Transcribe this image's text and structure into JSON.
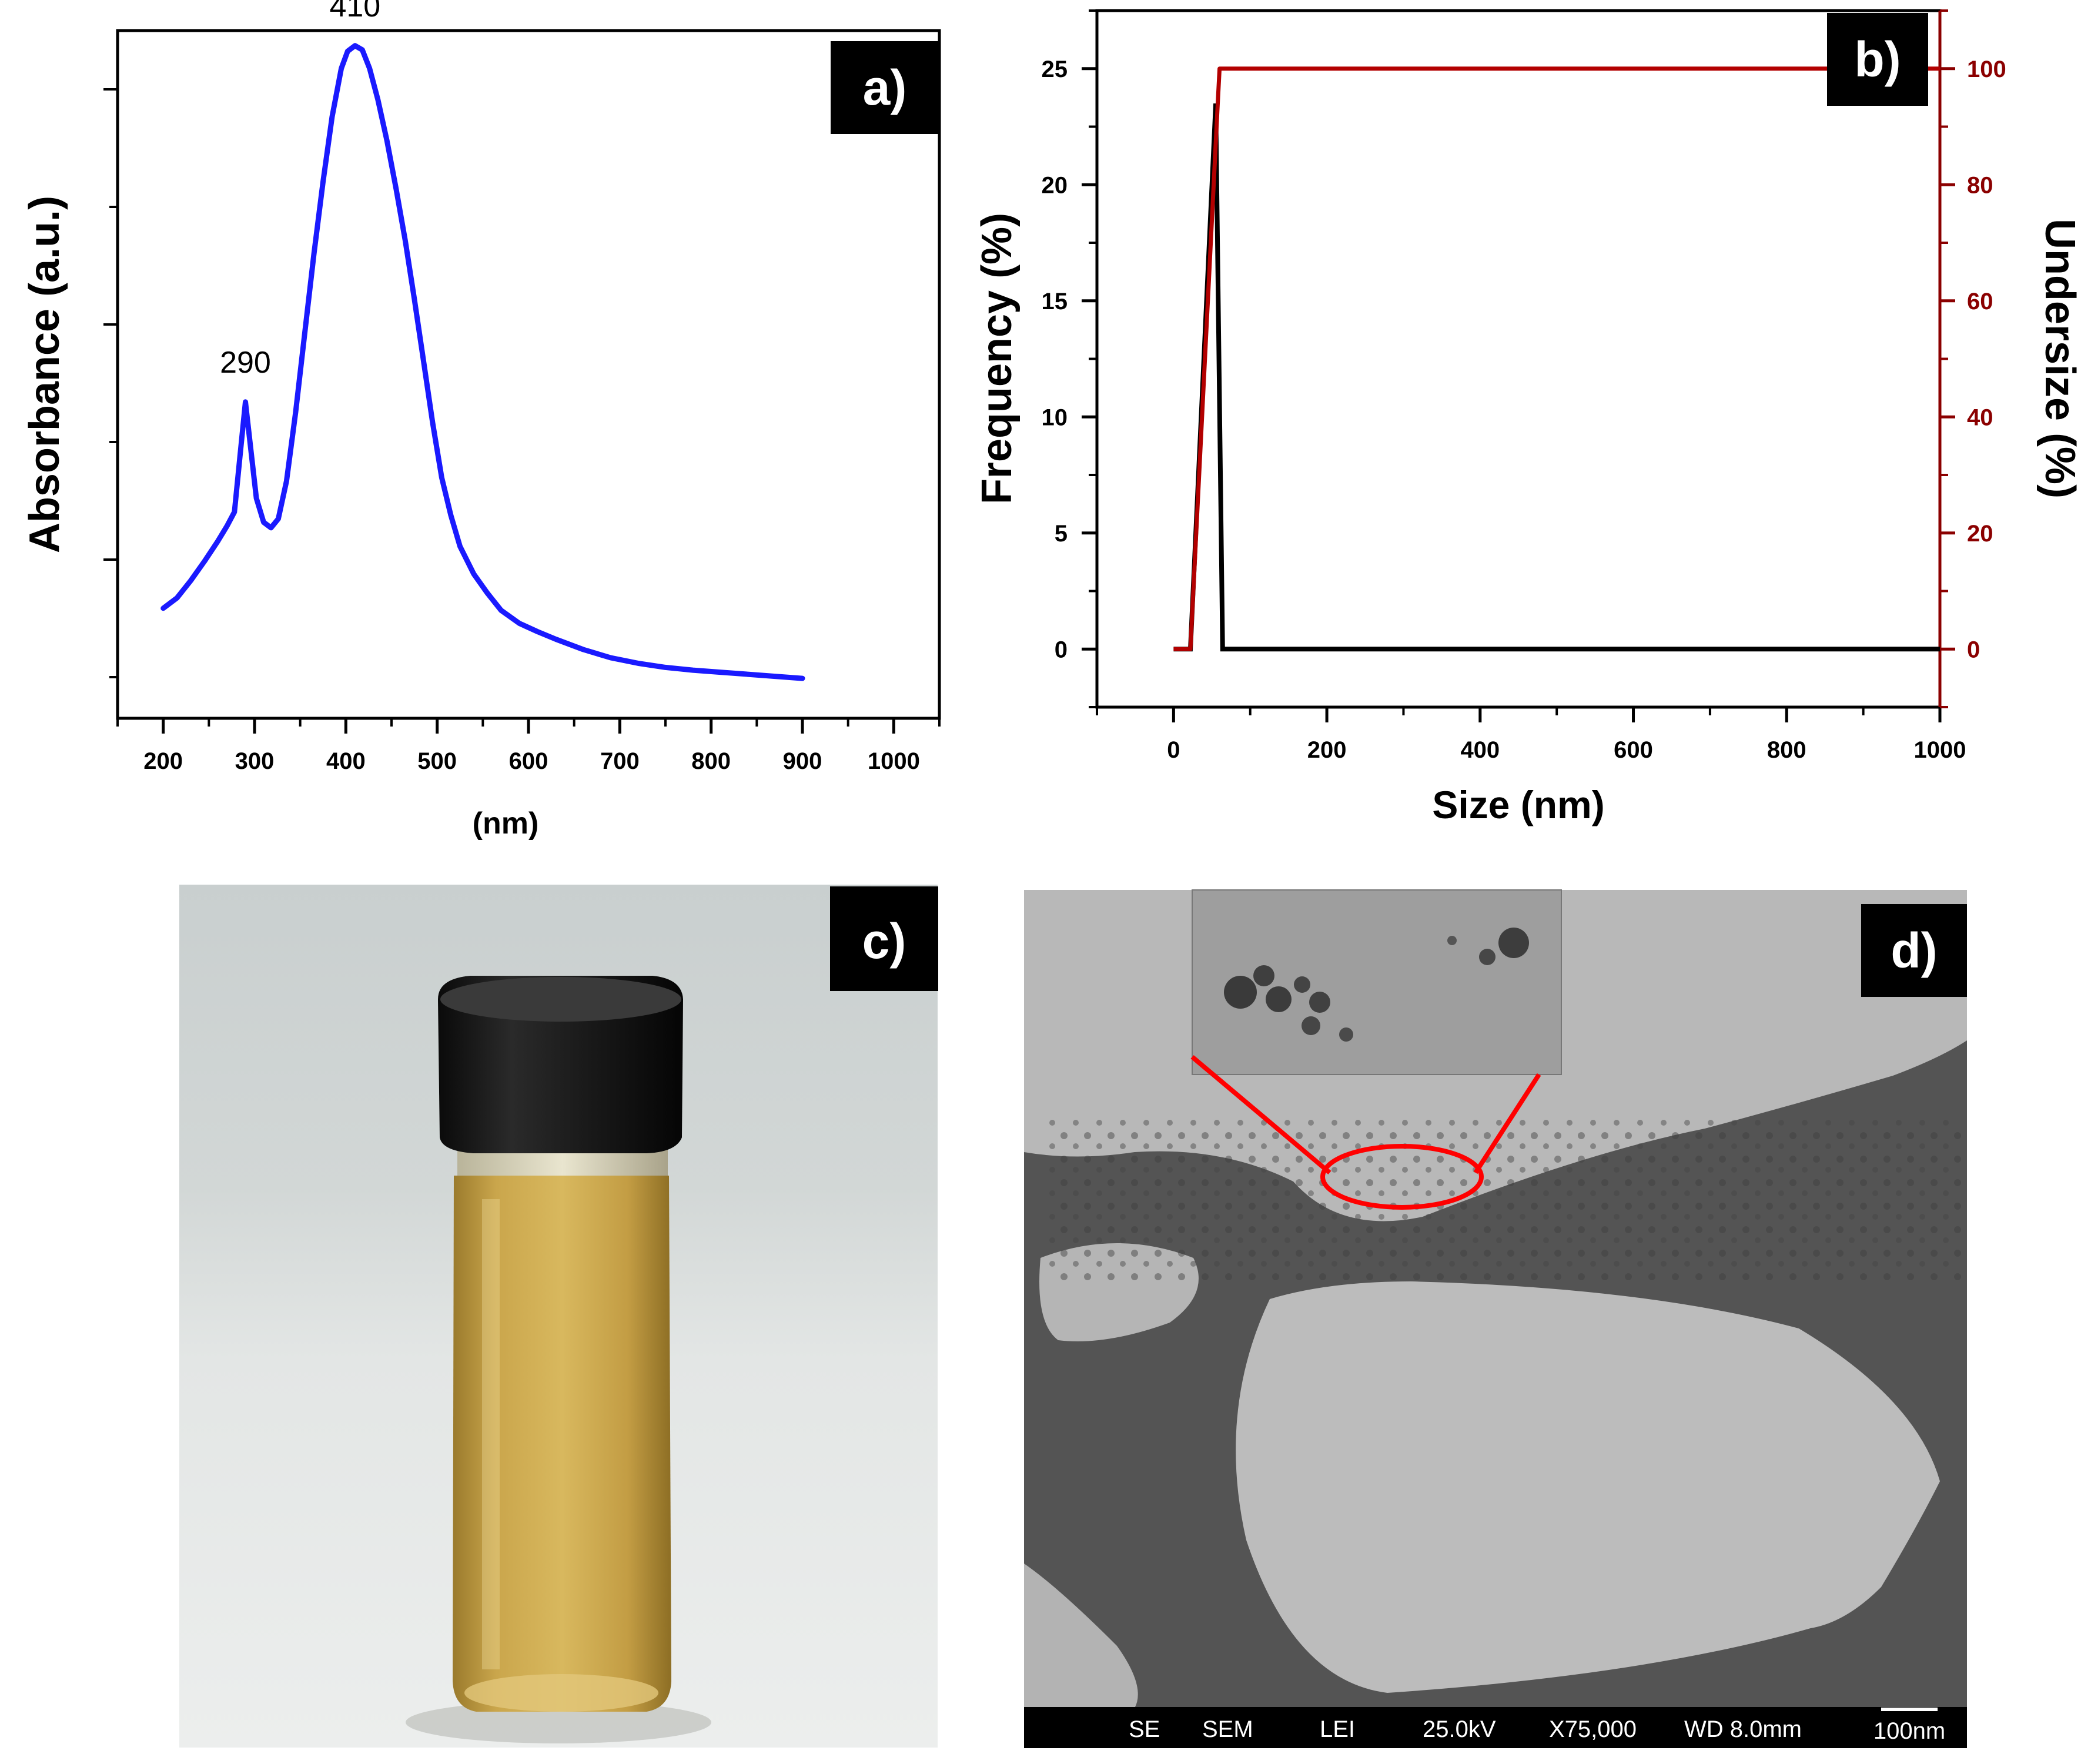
{
  "panels": {
    "a": {
      "tag": "a)"
    },
    "b": {
      "tag": "b)"
    },
    "c": {
      "tag": "c)"
    },
    "d": {
      "tag": "d)"
    }
  },
  "sem_info": {
    "fields": [
      "SE",
      "SEM",
      "LEI",
      "25.0kV",
      "X75,000",
      "WD 8.0mm"
    ],
    "scale_label": "100nm"
  },
  "chart_data": [
    {
      "panel": "a)",
      "type": "line",
      "xlabel": "(nm)",
      "ylabel": "Absorbance (a.u.)",
      "xlim": [
        150,
        1050
      ],
      "ylim": [
        0,
        1.0
      ],
      "x_ticks": [
        200,
        300,
        400,
        500,
        600,
        700,
        800,
        900,
        1000
      ],
      "y_tick_labels_shown": false,
      "annotations": [
        {
          "text": "290",
          "x": 290
        },
        {
          "text": "410",
          "x": 410
        }
      ],
      "series": [
        {
          "color": "#1a1aff",
          "x": [
            200,
            215,
            230,
            245,
            260,
            270,
            278,
            284,
            290,
            296,
            302,
            310,
            318,
            326,
            335,
            345,
            355,
            365,
            375,
            385,
            395,
            402,
            410,
            418,
            426,
            435,
            445,
            455,
            465,
            475,
            485,
            495,
            505,
            515,
            525,
            540,
            555,
            570,
            590,
            610,
            630,
            660,
            690,
            720,
            750,
            780,
            810,
            840,
            870,
            900
          ],
          "y": [
            0.16,
            0.175,
            0.2,
            0.228,
            0.258,
            0.28,
            0.3,
            0.38,
            0.46,
            0.39,
            0.32,
            0.285,
            0.277,
            0.29,
            0.345,
            0.445,
            0.56,
            0.675,
            0.78,
            0.875,
            0.945,
            0.97,
            0.978,
            0.972,
            0.945,
            0.9,
            0.84,
            0.77,
            0.695,
            0.61,
            0.52,
            0.43,
            0.35,
            0.295,
            0.25,
            0.21,
            0.182,
            0.157,
            0.138,
            0.126,
            0.115,
            0.1,
            0.088,
            0.08,
            0.074,
            0.07,
            0.067,
            0.064,
            0.061,
            0.058
          ]
        }
      ]
    },
    {
      "panel": "b)",
      "type": "line",
      "xlabel": "Size (nm)",
      "ylabel": "Frequency (%)",
      "y2label": "Undersize (%)",
      "xlim": [
        -100,
        1000
      ],
      "ylim": [
        -2.5,
        27.5
      ],
      "y2lim": [
        -10,
        110
      ],
      "x_ticks": [
        0,
        200,
        400,
        600,
        800,
        1000
      ],
      "y_ticks": [
        0,
        5,
        10,
        15,
        20,
        25
      ],
      "y2_ticks": [
        0,
        20,
        40,
        60,
        80,
        100
      ],
      "series": [
        {
          "axis": "left",
          "color": "#000000",
          "x": [
            0,
            22,
            55,
            64,
            1000
          ],
          "y": [
            0,
            0,
            23.5,
            0,
            0
          ]
        },
        {
          "axis": "right",
          "color": "#b30000",
          "x": [
            0,
            22,
            58,
            60,
            1000
          ],
          "y": [
            0,
            0,
            95,
            100,
            100
          ]
        }
      ]
    }
  ]
}
